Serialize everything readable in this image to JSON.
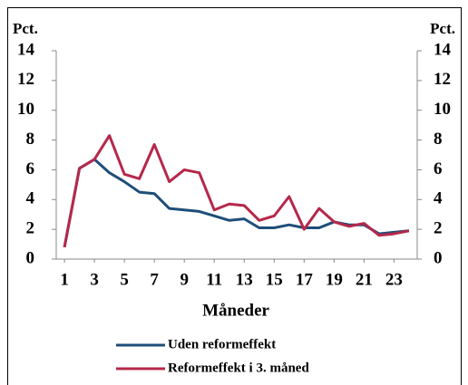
{
  "chart_data": {
    "type": "line",
    "x": [
      1,
      2,
      3,
      4,
      5,
      6,
      7,
      8,
      9,
      10,
      11,
      12,
      13,
      14,
      15,
      16,
      17,
      18,
      19,
      20,
      21,
      22,
      23,
      24
    ],
    "xlim": [
      0.45,
      24.55
    ],
    "xticks": [
      1,
      3,
      5,
      7,
      9,
      11,
      13,
      15,
      17,
      19,
      21,
      23
    ],
    "xlabel": "Måneder",
    "ylabel": "Pct.",
    "y2label": "Pct.",
    "ylim": [
      0,
      14
    ],
    "yticks": [
      0,
      2,
      4,
      6,
      8,
      10,
      12,
      14
    ],
    "y2lim": [
      0,
      14
    ],
    "y2ticks": [
      0,
      2,
      4,
      6,
      8,
      10,
      12,
      14
    ],
    "grid": false,
    "series": [
      {
        "name": "Uden reformeffekt",
        "color": "#1f4e79",
        "values": [
          0.8,
          6.1,
          6.7,
          5.8,
          5.2,
          4.5,
          4.4,
          3.4,
          3.3,
          3.2,
          2.9,
          2.6,
          2.7,
          2.1,
          2.1,
          2.3,
          2.1,
          2.1,
          2.5,
          2.3,
          2.3,
          1.7,
          1.8,
          1.9
        ]
      },
      {
        "name": "Reformeffekt i 3. måned",
        "color": "#b5284a",
        "values": [
          0.8,
          6.1,
          6.7,
          8.3,
          5.7,
          5.4,
          7.7,
          5.2,
          6.0,
          5.8,
          3.3,
          3.7,
          3.6,
          2.6,
          2.9,
          4.2,
          2.0,
          3.4,
          2.5,
          2.2,
          2.4,
          1.6,
          1.7,
          1.9
        ]
      }
    ]
  }
}
